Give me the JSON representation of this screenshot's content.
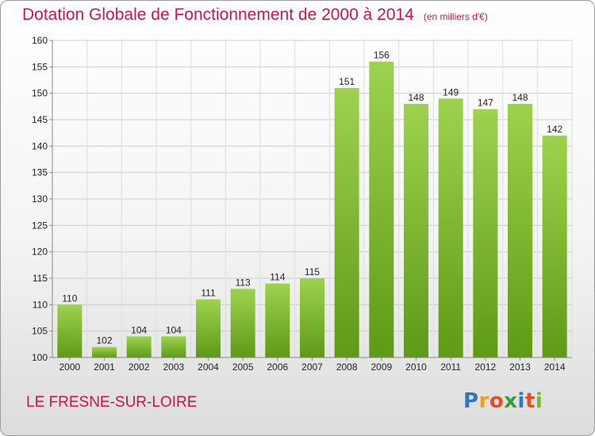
{
  "header": {
    "title": "Dotation Globale de Fonctionnement de 2000 à 2014",
    "subtitle": "(en milliers d'€)"
  },
  "footer": {
    "commune": "LE FRESNE-SUR-LOIRE",
    "logo_letters": [
      "P",
      "r",
      "o",
      "x",
      "i",
      "t",
      "i"
    ],
    "logo_colors": [
      "#2b78c5",
      "#e8a21c",
      "#e04e2a",
      "#3a9c35",
      "#2b78c5",
      "#e04e2a",
      "#7ab82e"
    ]
  },
  "chart_data": {
    "type": "bar",
    "title": "Dotation Globale de Fonctionnement de 2000 à 2014",
    "subtitle": "(en milliers d'€)",
    "categories": [
      "2000",
      "2001",
      "2002",
      "2003",
      "2004",
      "2005",
      "2006",
      "2007",
      "2008",
      "2009",
      "2010",
      "2011",
      "2012",
      "2013",
      "2014"
    ],
    "values": [
      110,
      102,
      104,
      104,
      111,
      113,
      114,
      115,
      151,
      156,
      148,
      149,
      147,
      148,
      142
    ],
    "ylim": [
      100,
      160
    ],
    "yticks": [
      100,
      105,
      110,
      115,
      120,
      125,
      130,
      135,
      140,
      145,
      150,
      155,
      160
    ],
    "grid": true,
    "bar_color_top": "#9ed24e",
    "bar_color_bottom": "#5e9a16"
  }
}
